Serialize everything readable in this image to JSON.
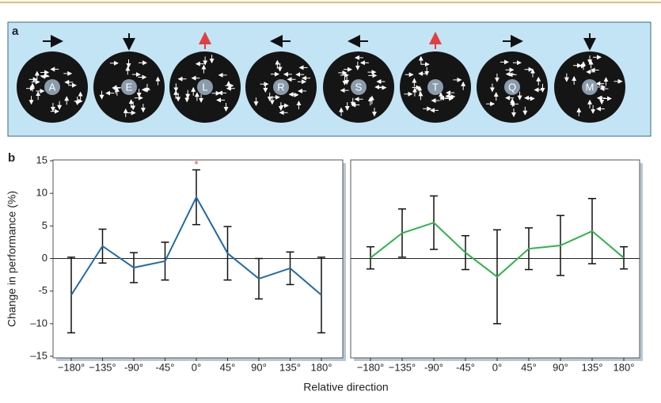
{
  "panel_a": {
    "label": "a",
    "letters": [
      "A",
      "E",
      "L",
      "R",
      "S",
      "T",
      "Q",
      "M"
    ]
  },
  "panel_b_label": "b",
  "chart_data": [
    {
      "type": "line",
      "ylabel": "Change in performance (%)",
      "xlabel": "Relative direction",
      "annotation": "*",
      "categories": [
        "−180°",
        "−135°",
        "-90°",
        "-45°",
        "0°",
        "45°",
        "90°",
        "135°",
        "180°"
      ],
      "series": [
        {
          "color": "#1f6aa8",
          "values": [
            -5.6,
            1.9,
            -1.4,
            -0.4,
            9.4,
            0.8,
            -3.1,
            -1.5,
            -5.6
          ],
          "errors": [
            5.8,
            2.6,
            2.3,
            2.9,
            4.2,
            4.1,
            3.1,
            2.5,
            5.8
          ]
        }
      ],
      "ylim": [
        -15,
        15
      ],
      "yticks": [
        {
          "value": -15,
          "label": "–15"
        },
        {
          "value": -10,
          "label": "–10"
        },
        {
          "value": -5,
          "label": "-5"
        },
        0,
        5,
        10,
        15
      ]
    },
    {
      "type": "line",
      "categories": [
        "−180°",
        "−135°",
        "-90°",
        "-45°",
        "0°",
        "45°",
        "90°",
        "135°",
        "180°"
      ],
      "series": [
        {
          "color": "#2eb34a",
          "values": [
            0.1,
            3.9,
            5.5,
            0.9,
            -2.8,
            1.5,
            2.0,
            4.2,
            0.1
          ],
          "errors": [
            1.7,
            3.7,
            4.1,
            2.6,
            7.2,
            3.2,
            4.6,
            5.0,
            1.7
          ]
        }
      ],
      "ylim": [
        -15,
        15
      ]
    }
  ]
}
